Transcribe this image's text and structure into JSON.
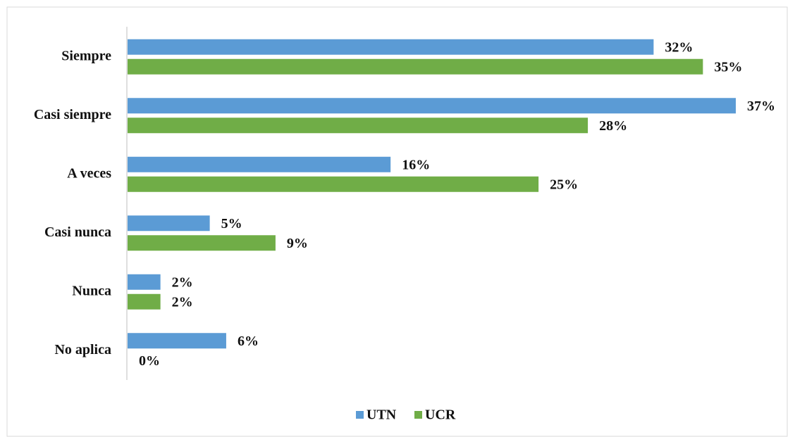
{
  "chart_data": {
    "type": "hbar",
    "categories": [
      "Siempre",
      "Casi siempre",
      "A veces",
      "Casi nunca",
      "Nunca",
      "No aplica"
    ],
    "series": [
      {
        "name": "UTN",
        "color": "#5b9bd5",
        "values": [
          32,
          37,
          16,
          5,
          2,
          6
        ],
        "value_labels": [
          "32%",
          "37%",
          "16%",
          "5%",
          "2%",
          "6%"
        ]
      },
      {
        "name": "UCR",
        "color": "#70ad47",
        "values": [
          35,
          28,
          25,
          9,
          2,
          0
        ],
        "value_labels": [
          "35%",
          "28%",
          "25%",
          "9%",
          "2%",
          "0%"
        ]
      }
    ],
    "legend": "bottom"
  }
}
